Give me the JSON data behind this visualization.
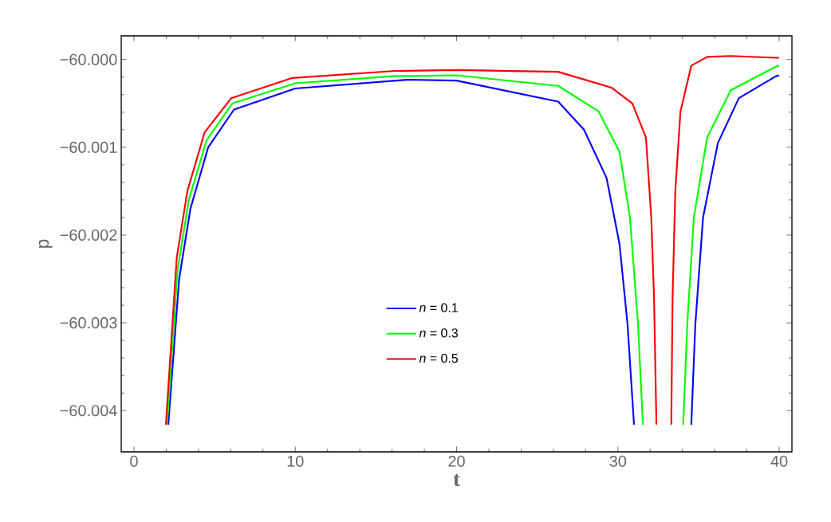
{
  "chart_data": {
    "type": "line",
    "xlabel": "t",
    "ylabel": "p",
    "xlim": [
      -0.79,
      40.79
    ],
    "ylim": [
      -60.00447,
      -59.99973
    ],
    "xticks": [
      0,
      10,
      20,
      30,
      40
    ],
    "yticks": [
      {
        "value": -60.004,
        "label": "−60.004"
      },
      {
        "value": -60.003,
        "label": "−60.003"
      },
      {
        "value": -60.002,
        "label": "−60.002"
      },
      {
        "value": -60.001,
        "label": "−60.001"
      },
      {
        "value": -60.0,
        "label": "−60.000"
      }
    ],
    "legend": "bottom",
    "grid": false,
    "marker": "none",
    "line_style": "solid",
    "series": [
      {
        "name": "*n* = 0.1",
        "color": "#0000ff",
        "x": [
          2.13,
          2.8,
          3.5,
          4.6,
          6.2,
          10,
          17,
          20,
          26.3,
          27.9,
          29.3,
          30.1,
          30.6,
          31.0,
          32.5,
          34.55,
          34.8,
          35.28,
          36.2,
          37.5,
          39.8,
          40
        ],
        "values": [
          -60.00416,
          -60.0025,
          -60.0017,
          -60.001,
          -60.00057,
          -60.00033,
          -60.00023,
          -60.00024,
          -60.00048,
          -60.0008,
          -60.00135,
          -60.0021,
          -60.00302,
          -60.00416,
          null,
          -60.00416,
          -60.00302,
          -60.0018,
          -60.00095,
          -60.00044,
          -60.00019,
          -60.00018
        ]
      },
      {
        "name": "*n* = 0.3",
        "color": "#00ff00",
        "x": [
          2.05,
          2.7,
          3.4,
          4.5,
          6.1,
          10,
          16,
          20,
          26.3,
          28.8,
          30.1,
          30.75,
          31.25,
          31.55,
          32.8,
          34.05,
          34.3,
          34.71,
          35.53,
          37.0,
          39.8,
          40
        ],
        "values": [
          -60.00416,
          -60.0024,
          -60.0016,
          -60.00092,
          -60.0005,
          -60.00027,
          -60.00019,
          -60.00018,
          -60.0003,
          -60.00059,
          -60.00105,
          -60.0018,
          -60.00302,
          -60.00416,
          null,
          -60.00416,
          -60.00302,
          -60.0018,
          -60.00089,
          -60.00035,
          -60.00008,
          -60.00007
        ]
      },
      {
        "name": "*n* = 0.5",
        "color": "#ff0000",
        "x": [
          1.98,
          2.65,
          3.31,
          4.38,
          6.03,
          9.82,
          16.17,
          20,
          26.3,
          29.6,
          30.9,
          31.74,
          32.07,
          32.24,
          32.39,
          32.85,
          33.31,
          33.39,
          33.56,
          33.88,
          34.55,
          35.53,
          37.0,
          39.8,
          40
        ],
        "values": [
          -60.00416,
          -60.00226,
          -60.0015,
          -60.00083,
          -60.00044,
          -60.00021,
          -60.00013,
          -60.00012,
          -60.00014,
          -60.00032,
          -60.0005,
          -60.00089,
          -60.0018,
          -60.00271,
          -60.00416,
          null,
          -60.00416,
          -60.00271,
          -60.0015,
          -60.00059,
          -60.00007,
          -59.99997,
          -59.99996,
          -59.99998,
          -59.99998
        ]
      }
    ]
  }
}
